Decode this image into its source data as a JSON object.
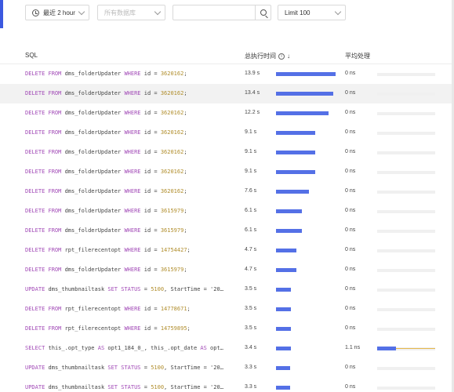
{
  "toolbar": {
    "time_range": "最近 2 hour",
    "database_placeholder": "所有数据库",
    "search_value": "",
    "limit": "Limit 100"
  },
  "table": {
    "headers": {
      "sql": "SQL",
      "total_time": "总执行时间",
      "avg_process": "平均处理"
    },
    "rows": [
      {
        "sql": [
          "DELETE FROM",
          " dms_folderUpdater ",
          "WHERE",
          " id = ",
          "3620162",
          ";"
        ],
        "total": "13.9 s",
        "total_frac": 1.0,
        "avg": "0 ns",
        "avg_frac": 0,
        "hl": false
      },
      {
        "sql": [
          "DELETE FROM",
          " dms_folderUpdater ",
          "WHERE",
          " id = ",
          "3620162",
          ";"
        ],
        "total": "13.4 s",
        "total_frac": 0.964,
        "avg": "0 ns",
        "avg_frac": 0,
        "hl": true
      },
      {
        "sql": [
          "DELETE FROM",
          " dms_folderUpdater ",
          "WHERE",
          " id = ",
          "3620162",
          ";"
        ],
        "total": "12.2 s",
        "total_frac": 0.878,
        "avg": "0 ns",
        "avg_frac": 0,
        "hl": false
      },
      {
        "sql": [
          "DELETE FROM",
          " dms_folderUpdater ",
          "WHERE",
          " id = ",
          "3620162",
          ";"
        ],
        "total": "9.1 s",
        "total_frac": 0.655,
        "avg": "0 ns",
        "avg_frac": 0,
        "hl": false
      },
      {
        "sql": [
          "DELETE FROM",
          " dms_folderUpdater ",
          "WHERE",
          " id = ",
          "3620162",
          ";"
        ],
        "total": "9.1 s",
        "total_frac": 0.655,
        "avg": "0 ns",
        "avg_frac": 0,
        "hl": false
      },
      {
        "sql": [
          "DELETE FROM",
          " dms_folderUpdater ",
          "WHERE",
          " id = ",
          "3620162",
          ";"
        ],
        "total": "9.1 s",
        "total_frac": 0.655,
        "avg": "0 ns",
        "avg_frac": 0,
        "hl": false
      },
      {
        "sql": [
          "DELETE FROM",
          " dms_folderUpdater ",
          "WHERE",
          " id = ",
          "3620162",
          ";"
        ],
        "total": "7.6 s",
        "total_frac": 0.547,
        "avg": "0 ns",
        "avg_frac": 0,
        "hl": false
      },
      {
        "sql": [
          "DELETE FROM",
          " dms_folderUpdater ",
          "WHERE",
          " id = ",
          "3615979",
          ";"
        ],
        "total": "6.1 s",
        "total_frac": 0.439,
        "avg": "0 ns",
        "avg_frac": 0,
        "hl": false
      },
      {
        "sql": [
          "DELETE FROM",
          " dms_folderUpdater ",
          "WHERE",
          " id = ",
          "3615979",
          ";"
        ],
        "total": "6.1 s",
        "total_frac": 0.439,
        "avg": "0 ns",
        "avg_frac": 0,
        "hl": false
      },
      {
        "sql": [
          "DELETE FROM",
          " rpt_filerecentopt ",
          "WHERE",
          " id = ",
          "14754427",
          ";"
        ],
        "total": "4.7 s",
        "total_frac": 0.338,
        "avg": "0 ns",
        "avg_frac": 0,
        "hl": false
      },
      {
        "sql": [
          "DELETE FROM",
          " dms_folderUpdater ",
          "WHERE",
          " id = ",
          "3615979",
          ";"
        ],
        "total": "4.7 s",
        "total_frac": 0.338,
        "avg": "0 ns",
        "avg_frac": 0,
        "hl": false
      },
      {
        "sql": [
          "UPDATE",
          " dms_thumbnailtask ",
          "SET STATUS",
          " = ",
          "5100",
          ", StartTime = '20…"
        ],
        "total": "3.5 s",
        "total_frac": 0.252,
        "avg": "0 ns",
        "avg_frac": 0,
        "hl": false
      },
      {
        "sql": [
          "DELETE FROM",
          " rpt_filerecentopt ",
          "WHERE",
          " id = ",
          "14778671",
          ";"
        ],
        "total": "3.5 s",
        "total_frac": 0.252,
        "avg": "0 ns",
        "avg_frac": 0,
        "hl": false
      },
      {
        "sql": [
          "DELETE FROM",
          " rpt_filerecentopt ",
          "WHERE",
          " id = ",
          "14759895",
          ";"
        ],
        "total": "3.5 s",
        "total_frac": 0.252,
        "avg": "0 ns",
        "avg_frac": 0,
        "hl": false
      },
      {
        "sql": [
          "SELECT",
          " this_.opt_type ",
          "AS",
          " opt1_184_0_, this_.opt_date ",
          "AS",
          " opt…"
        ],
        "total": "3.4 s",
        "total_frac": 0.245,
        "avg": "1.1 ns",
        "avg_frac": 0.33,
        "hl": false
      },
      {
        "sql": [
          "UPDATE",
          " dms_thumbnailtask ",
          "SET STATUS",
          " = ",
          "5100",
          ", StartTime = '20…"
        ],
        "total": "3.3 s",
        "total_frac": 0.237,
        "avg": "0 ns",
        "avg_frac": 0,
        "hl": false
      },
      {
        "sql": [
          "UPDATE",
          " dms_thumbnailtask ",
          "SET STATUS",
          " = ",
          "5100",
          ", StartTime = '20…"
        ],
        "total": "3.3 s",
        "total_frac": 0.237,
        "avg": "0 ns",
        "avg_frac": 0,
        "hl": false
      }
    ]
  },
  "colors": {
    "accent": "#5470e6",
    "keyword": "#a24bb7",
    "number": "#b08d2b",
    "avg_line": "#e6b84c"
  }
}
